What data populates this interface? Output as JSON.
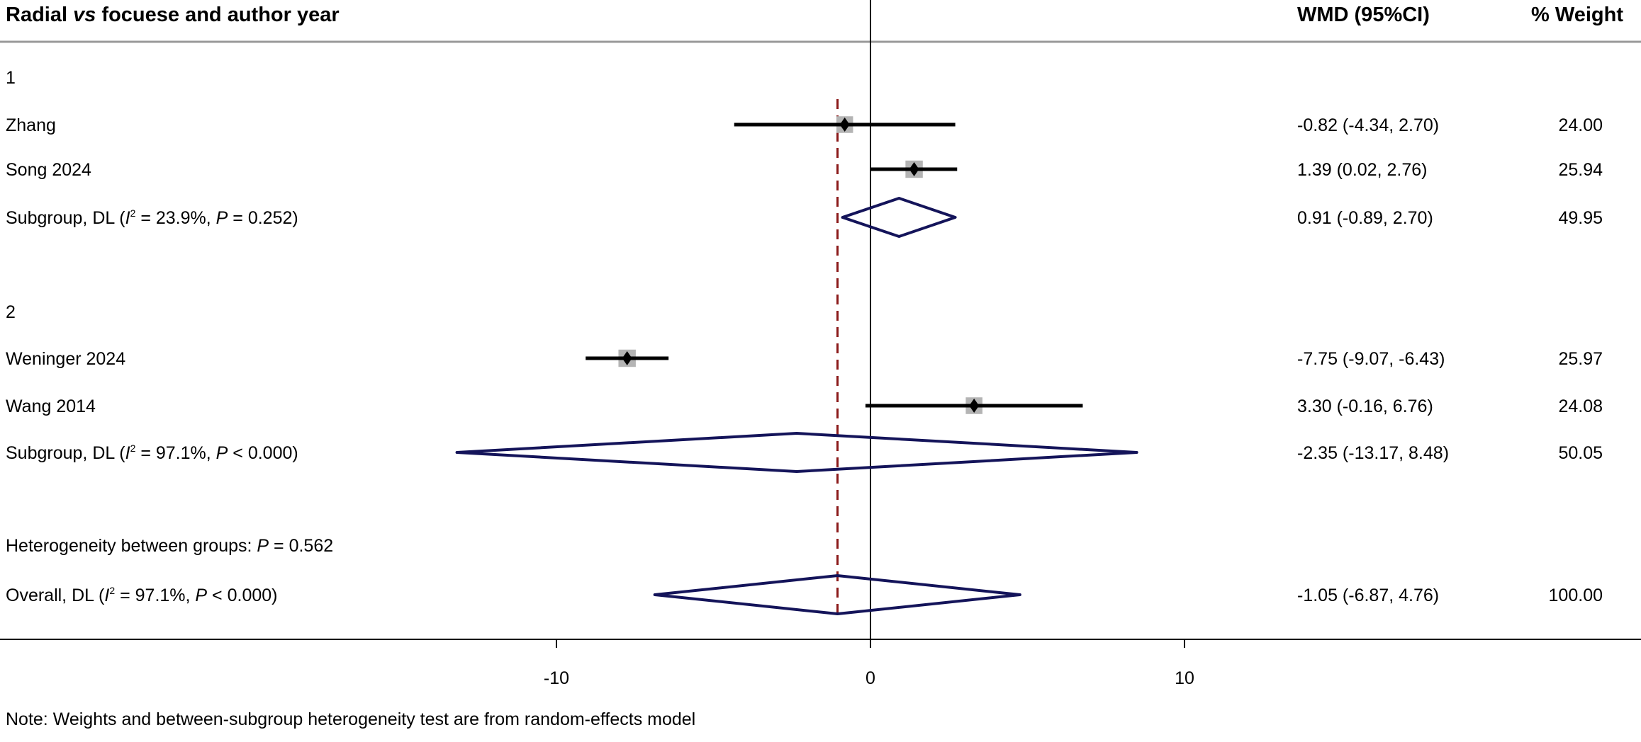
{
  "chart_data": {
    "type": "forest",
    "header": {
      "study_label_pre": "Radial ",
      "study_label_italic": "vs",
      "study_label_post": " focuese and author year",
      "effect_label": "WMD (95%CI)",
      "weight_label": "% Weight"
    },
    "rows": [
      {
        "kind": "group",
        "label": "1"
      },
      {
        "kind": "study",
        "label": "Zhang",
        "est": -0.82,
        "lo": -4.34,
        "hi": 2.7,
        "text": "-0.82 (-4.34, 2.70)",
        "weight": "24.00"
      },
      {
        "kind": "study",
        "label": "Song 2024",
        "est": 1.39,
        "lo": 0.02,
        "hi": 2.76,
        "text": "1.39 (0.02, 2.76)",
        "weight": "25.94"
      },
      {
        "kind": "subgroup",
        "label_pre": "Subgroup, DL (",
        "i2": "23.9%",
        "p": "= 0.252",
        "est": 0.91,
        "lo": -0.89,
        "hi": 2.7,
        "text": "0.91 (-0.89, 2.70)",
        "weight": "49.95"
      },
      {
        "kind": "blank"
      },
      {
        "kind": "group",
        "label": "2"
      },
      {
        "kind": "study",
        "label": "Weninger 2024",
        "est": -7.75,
        "lo": -9.07,
        "hi": -6.43,
        "text": "-7.75 (-9.07, -6.43)",
        "weight": "25.97"
      },
      {
        "kind": "study",
        "label": "Wang 2014",
        "est": 3.3,
        "lo": -0.16,
        "hi": 6.76,
        "text": "3.30 (-0.16, 6.76)",
        "weight": "24.08"
      },
      {
        "kind": "subgroup",
        "label_pre": "Subgroup, DL (",
        "i2": "97.1%",
        "p": "< 0.000",
        "est": -2.35,
        "lo": -13.17,
        "hi": 8.48,
        "text": "-2.35 (-13.17, 8.48)",
        "weight": "50.05"
      },
      {
        "kind": "blank"
      },
      {
        "kind": "het",
        "label_pre": "Heterogeneity between groups: ",
        "p": "= 0.562"
      },
      {
        "kind": "overall",
        "label_pre": "Overall, DL (",
        "i2": "97.1%",
        "p": "< 0.000",
        "est": -1.05,
        "lo": -6.87,
        "hi": 4.76,
        "text": "-1.05 (-6.87, 4.76)",
        "weight": "100.00"
      }
    ],
    "x_ticks": [
      -10,
      0,
      10
    ],
    "x_tick_labels": [
      "-10",
      "0",
      "10"
    ],
    "null_line": 0,
    "overall_line": -1.05,
    "note": "Note: Weights and between-subgroup heterogeneity test are from random-effects model",
    "colors": {
      "diamond": "#14145a",
      "box": "#b4b4b4",
      "overall_line": "#8b1a1a",
      "ci": "#000000"
    }
  }
}
